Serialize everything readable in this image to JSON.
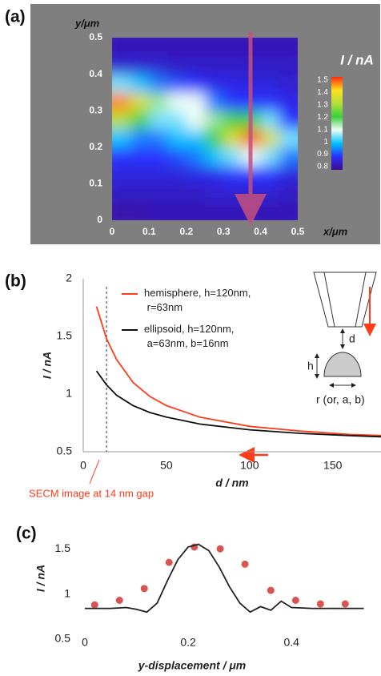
{
  "chart_data": [
    {
      "type": "heatmap",
      "panel": "(a)",
      "xlabel": "x/μm",
      "ylabel": "y/μm",
      "x": [
        0.025,
        0.075,
        0.125,
        0.175,
        0.225,
        0.275,
        0.325,
        0.375,
        0.425,
        0.475
      ],
      "y": [
        0.025,
        0.075,
        0.125,
        0.175,
        0.225,
        0.275,
        0.325,
        0.375,
        0.425,
        0.475
      ],
      "z": [
        [
          0.83,
          0.83,
          0.84,
          0.84,
          0.84,
          0.84,
          0.84,
          0.84,
          0.84,
          0.84
        ],
        [
          0.85,
          0.85,
          0.85,
          0.85,
          0.85,
          0.86,
          0.86,
          0.86,
          0.86,
          0.85
        ],
        [
          0.87,
          0.87,
          0.87,
          0.87,
          0.88,
          0.88,
          0.9,
          0.9,
          0.9,
          0.87
        ],
        [
          0.9,
          0.9,
          0.9,
          0.92,
          0.95,
          1.0,
          1.05,
          1.1,
          1.05,
          0.95
        ],
        [
          1.0,
          0.95,
          0.95,
          1.0,
          1.0,
          1.2,
          1.35,
          1.48,
          1.35,
          1.05
        ],
        [
          1.3,
          1.2,
          1.05,
          1.05,
          1.1,
          1.15,
          1.2,
          1.2,
          1.05,
          0.9
        ],
        [
          1.45,
          1.35,
          1.15,
          1.1,
          1.1,
          0.95,
          0.9,
          0.9,
          0.9,
          0.88
        ],
        [
          1.05,
          1.0,
          0.95,
          0.92,
          0.9,
          0.88,
          0.88,
          0.87,
          0.87,
          0.86
        ],
        [
          0.86,
          0.86,
          0.86,
          0.85,
          0.85,
          0.85,
          0.85,
          0.85,
          0.85,
          0.85
        ],
        [
          0.84,
          0.84,
          0.84,
          0.84,
          0.84,
          0.84,
          0.84,
          0.84,
          0.84,
          0.84
        ]
      ],
      "xlim": [
        0,
        0.5
      ],
      "ylim": [
        0,
        0.5
      ],
      "xticks": [
        0,
        0.1,
        0.2,
        0.3,
        0.4,
        0.5
      ],
      "yticks": [
        0,
        0.1,
        0.2,
        0.3,
        0.4,
        0.5
      ],
      "colorbar": {
        "title": "I / nA",
        "ticks": [
          0.8,
          0.9,
          1,
          1.1,
          1.2,
          1.3,
          1.4,
          1.5
        ],
        "colors": [
          "#3c0a8a",
          "#2a30ff",
          "#00c4ff",
          "#effff6",
          "#3ccf3c",
          "#b4e03a",
          "#ffe020",
          "#ff2a10"
        ]
      },
      "background": "#7f7f7f"
    },
    {
      "type": "line",
      "panel": "(b)",
      "xlabel": "d / nm",
      "ylabel": "I / nA",
      "x": [
        8,
        14,
        20,
        30,
        40,
        50,
        70,
        100,
        130,
        160,
        179
      ],
      "series": [
        {
          "name": "hemisphere, h=120nm, r=63nm",
          "color": "#ff3b1a",
          "values": [
            1.76,
            1.48,
            1.3,
            1.1,
            0.98,
            0.9,
            0.8,
            0.72,
            0.68,
            0.65,
            0.64
          ]
        },
        {
          "name": "ellipsoid, h=120nm, a=63nm, b=16nm",
          "color": "#111111",
          "values": [
            1.2,
            1.08,
            0.99,
            0.9,
            0.84,
            0.8,
            0.74,
            0.69,
            0.66,
            0.64,
            0.63
          ]
        }
      ],
      "xlim": [
        0,
        179
      ],
      "ylim": [
        0.5,
        2
      ],
      "xticks": [
        0,
        50,
        100,
        150
      ],
      "yticks": [
        0.5,
        1,
        1.5,
        2
      ],
      "vline": {
        "x": 14,
        "label": "SECM image at 14 nm gap"
      },
      "inset_labels": [
        "d",
        "h",
        "r (or, a, b)"
      ]
    },
    {
      "type": "line",
      "panel": "(c)",
      "xlabel": "y-displacement / μm",
      "ylabel": "I / nA",
      "series": [
        {
          "type": "scatter",
          "color": "#d9534f",
          "x": [
            0.019,
            0.067,
            0.115,
            0.163,
            0.212,
            0.262,
            0.31,
            0.36,
            0.408,
            0.456,
            0.504
          ],
          "values": [
            0.88,
            0.93,
            1.06,
            1.35,
            1.52,
            1.5,
            1.33,
            1.04,
            0.93,
            0.89,
            0.89
          ]
        },
        {
          "type": "line",
          "color": "#222222",
          "x": [
            0,
            0.05,
            0.08,
            0.1,
            0.12,
            0.14,
            0.16,
            0.18,
            0.2,
            0.22,
            0.24,
            0.26,
            0.28,
            0.3,
            0.32,
            0.34,
            0.36,
            0.38,
            0.4,
            0.44,
            0.54
          ],
          "values": [
            0.84,
            0.84,
            0.85,
            0.83,
            0.8,
            0.9,
            1.15,
            1.38,
            1.52,
            1.55,
            1.48,
            1.3,
            1.08,
            0.9,
            0.8,
            0.86,
            0.82,
            0.92,
            0.85,
            0.84,
            0.84
          ]
        }
      ],
      "xlim": [
        0,
        0.55
      ],
      "ylim": [
        0.5,
        1.75
      ],
      "xticks": [
        0,
        0.2,
        0.4
      ],
      "yticks": [
        0.5,
        1,
        1.5
      ]
    }
  ]
}
